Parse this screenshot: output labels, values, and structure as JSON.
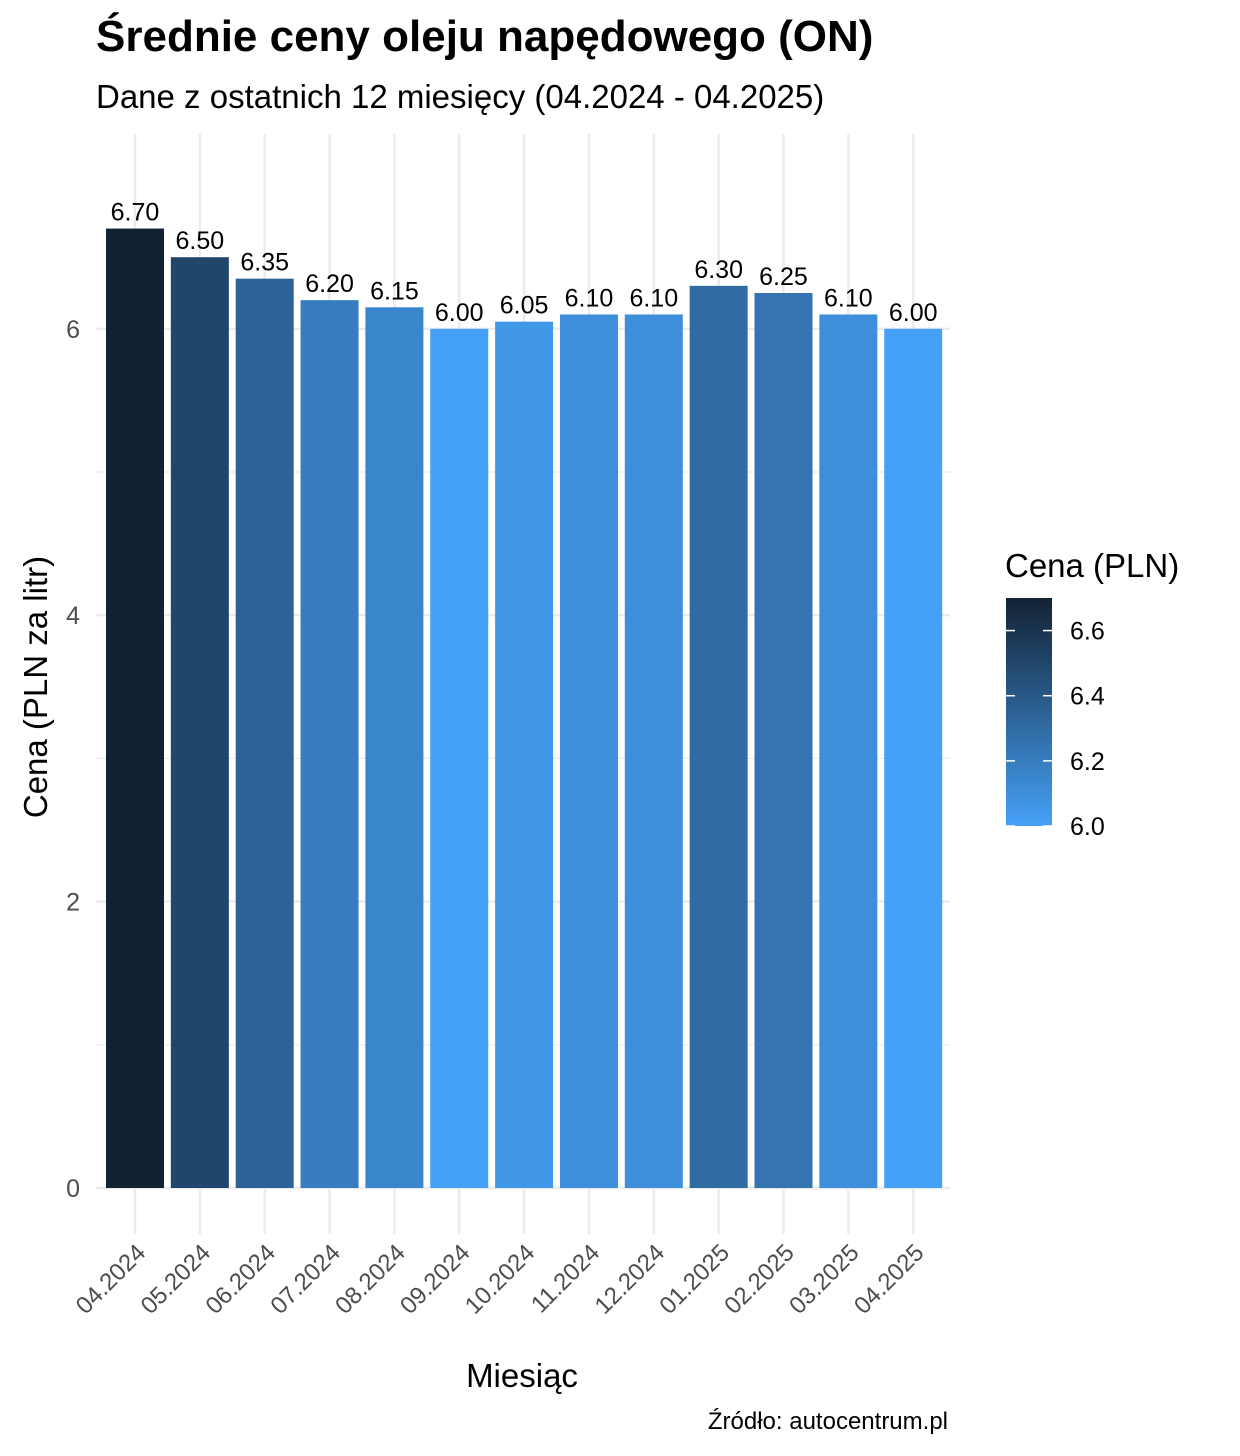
{
  "chart_data": {
    "type": "bar",
    "title": "Średnie ceny oleju napędowego (ON)",
    "subtitle": "Dane z ostatnich 12 miesięcy (04.2024 - 04.2025)",
    "caption": "Źródło: autocentrum.pl",
    "xlabel": "Miesiąc",
    "ylabel": "Cena (PLN za litr)",
    "categories": [
      "04.2024",
      "05.2024",
      "06.2024",
      "07.2024",
      "08.2024",
      "09.2024",
      "10.2024",
      "11.2024",
      "12.2024",
      "01.2025",
      "02.2025",
      "03.2025",
      "04.2025"
    ],
    "values": [
      6.7,
      6.5,
      6.35,
      6.2,
      6.15,
      6.0,
      6.05,
      6.1,
      6.1,
      6.3,
      6.25,
      6.1,
      6.0
    ],
    "value_labels": [
      "6.70",
      "6.50",
      "6.35",
      "6.20",
      "6.15",
      "6.00",
      "6.05",
      "6.10",
      "6.10",
      "6.30",
      "6.25",
      "6.10",
      "6.00"
    ],
    "ylim": [
      0,
      7
    ],
    "yticks": [
      0,
      2,
      4,
      6
    ],
    "ytick_labels": [
      "0",
      "2",
      "4",
      "6"
    ],
    "grid": true,
    "legend": {
      "title": "Cena (PLN)",
      "placement": "right",
      "ticks": [
        6.0,
        6.2,
        6.4,
        6.6
      ],
      "tick_labels": [
        "6.0",
        "6.2",
        "6.4",
        "6.6"
      ],
      "range": [
        6.0,
        6.7
      ],
      "color_low": "#45a1f7",
      "color_high": "#132233"
    },
    "colors": {
      "grid": "#ebebeb",
      "text": "#000000",
      "axis_text": "#4d4d4d"
    }
  }
}
